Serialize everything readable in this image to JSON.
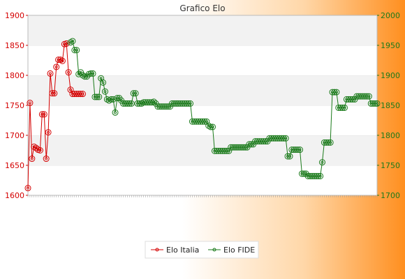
{
  "chart_data": {
    "type": "line",
    "title": "Grafico Elo",
    "xlabel": "",
    "y_left": {
      "label": "",
      "min": 1600,
      "max": 1900,
      "ticks": [
        1600,
        1650,
        1700,
        1750,
        1800,
        1850,
        1900
      ],
      "color": "#d40000"
    },
    "y_right": {
      "label": "",
      "min": 1700,
      "max": 2000,
      "ticks": [
        1700,
        1750,
        1800,
        1850,
        1900,
        1950,
        2000
      ],
      "color": "#1a7a1a"
    },
    "legend_position": "bottom-center",
    "grid": "horizontal alternating bands",
    "series": [
      {
        "name": "Elo Italia",
        "axis": "left",
        "color": "#d40000",
        "x": [
          1,
          2,
          3,
          4,
          5,
          6,
          7,
          8,
          9,
          10,
          11,
          12,
          13,
          14,
          15,
          16,
          17,
          18,
          19,
          20,
          21,
          22,
          23,
          24,
          25,
          26,
          27,
          28
        ],
        "values": [
          1612,
          1754,
          1661,
          1681,
          1679,
          1676,
          1675,
          1735,
          1735,
          1661,
          1705,
          1803,
          1770,
          1770,
          1814,
          1826,
          1826,
          1824,
          1852,
          1853,
          1805,
          1776,
          1769,
          1769,
          1769,
          1769,
          1769,
          1769
        ]
      },
      {
        "name": "Elo FIDE",
        "axis": "right",
        "color": "#1a7a1a",
        "x": [
          22,
          23,
          24,
          25,
          26,
          27,
          28,
          29,
          30,
          31,
          32,
          33,
          34,
          35,
          36,
          37,
          38,
          39,
          40,
          41,
          42,
          43,
          44,
          45,
          46,
          47,
          48,
          49,
          50,
          51,
          52,
          53,
          54,
          55,
          56,
          57,
          58,
          59,
          60,
          61,
          62,
          63,
          64,
          65,
          66,
          67,
          68,
          69,
          70,
          71,
          72,
          73,
          74,
          75,
          76,
          77,
          78,
          79,
          80,
          81,
          82,
          83,
          84,
          85,
          86,
          87,
          88,
          89,
          90,
          91,
          92,
          93,
          94,
          95,
          96,
          97,
          98,
          99,
          100,
          101,
          102,
          103,
          104,
          105,
          106,
          107,
          108,
          109,
          110,
          111,
          112,
          113,
          114,
          115,
          116,
          117,
          118,
          119,
          120,
          121,
          122,
          123,
          124,
          125,
          126,
          127,
          128,
          129,
          130,
          131,
          132,
          133,
          134,
          135,
          136,
          137,
          138,
          139,
          140,
          141,
          142,
          143,
          144,
          145,
          146,
          147,
          148,
          149,
          150,
          151,
          152,
          153,
          154,
          155,
          156,
          157,
          158,
          159,
          160,
          161,
          162,
          163,
          164,
          165,
          166,
          167,
          168,
          169,
          170,
          171,
          172,
          173
        ],
        "values": [
          1955,
          1957,
          1942,
          1942,
          1902,
          1905,
          1900,
          1898,
          1898,
          1902,
          1903,
          1903,
          1864,
          1864,
          1864,
          1895,
          1888,
          1873,
          1860,
          1858,
          1860,
          1860,
          1838,
          1862,
          1862,
          1858,
          1853,
          1853,
          1853,
          1853,
          1853,
          1870,
          1870,
          1853,
          1853,
          1853,
          1855,
          1855,
          1855,
          1855,
          1855,
          1856,
          1853,
          1848,
          1848,
          1848,
          1848,
          1848,
          1848,
          1848,
          1853,
          1853,
          1853,
          1853,
          1853,
          1853,
          1853,
          1853,
          1853,
          1853,
          1823,
          1823,
          1823,
          1823,
          1823,
          1823,
          1823,
          1823,
          1816,
          1814,
          1814,
          1774,
          1774,
          1774,
          1774,
          1774,
          1774,
          1774,
          1774,
          1780,
          1780,
          1780,
          1780,
          1780,
          1780,
          1780,
          1780,
          1780,
          1785,
          1785,
          1785,
          1790,
          1790,
          1790,
          1790,
          1790,
          1790,
          1790,
          1795,
          1795,
          1795,
          1795,
          1795,
          1795,
          1795,
          1795,
          1795,
          1765,
          1765,
          1776,
          1776,
          1776,
          1776,
          1776,
          1736,
          1736,
          1736,
          1732,
          1732,
          1732,
          1732,
          1732,
          1732,
          1732,
          1755,
          1788,
          1788,
          1788,
          1788,
          1872,
          1872,
          1872,
          1846,
          1846,
          1846,
          1846,
          1860,
          1860,
          1860,
          1860,
          1860,
          1865,
          1865,
          1865,
          1865,
          1865,
          1865,
          1865,
          1853,
          1853,
          1853,
          1853
        ]
      }
    ]
  },
  "legend": {
    "items": [
      {
        "label": "Elo Italia",
        "color": "#d40000"
      },
      {
        "label": "Elo FIDE",
        "color": "#1a7a1a"
      }
    ]
  }
}
